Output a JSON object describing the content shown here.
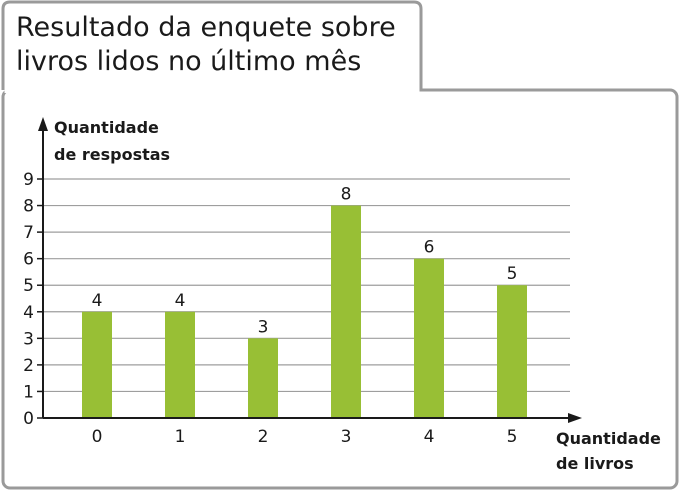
{
  "title": {
    "line1": "Resultado da enquete sobre",
    "line2": "livros lidos no último mês"
  },
  "colors": {
    "bar": "#98bf35",
    "frame": "#9a9a9a",
    "grid": "#9e9e9e",
    "axis": "#1a1a1a"
  },
  "chart_data": {
    "type": "bar",
    "categories": [
      "0",
      "1",
      "2",
      "3",
      "4",
      "5"
    ],
    "values": [
      4,
      4,
      3,
      8,
      6,
      5
    ],
    "title": "Resultado da enquete sobre livros lidos no último mês",
    "xlabel": "Quantidade de livros",
    "ylabel": "Quantidade de respostas",
    "xlabel_lines": [
      "Quantidade",
      "de livros"
    ],
    "ylabel_lines": [
      "Quantidade",
      "de respostas"
    ],
    "ylim": [
      0,
      9
    ],
    "yticks": [
      0,
      1,
      2,
      3,
      4,
      5,
      6,
      7,
      8,
      9
    ],
    "grid": true,
    "data_labels": true
  }
}
